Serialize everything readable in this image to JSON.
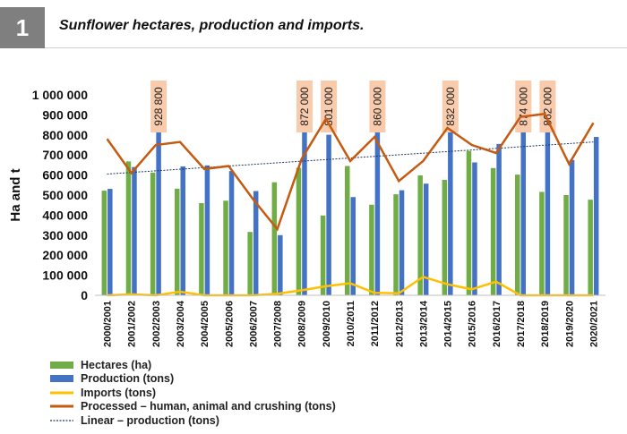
{
  "header": {
    "figure_number": "1",
    "title": "Sunflower hectares, production and imports."
  },
  "chart_data": {
    "type": "bar",
    "ylabel": "Ha and t",
    "ylim": [
      0,
      1000000
    ],
    "yticks": [
      "0",
      "100 000",
      "200 000",
      "300 000",
      "400 000",
      "500 000",
      "600 000",
      "700 000",
      "800 000",
      "900 000",
      "1 000 000"
    ],
    "grid": false,
    "categories": [
      "2000/2001",
      "2001/2002",
      "2002/2003",
      "2003/2004",
      "2004/2005",
      "2005/2006",
      "2006/2007",
      "2007/2008",
      "2008/2009",
      "2009/2010",
      "2010/2011",
      "2011/2012",
      "2012/2013",
      "2013/2014",
      "2014/2015",
      "2015/2016",
      "2016/2017",
      "2017/2018",
      "2018/2019",
      "2019/2020",
      "2020/2021"
    ],
    "colors": {
      "hectares": "#70ad47",
      "production": "#4472c4",
      "imports": "#ffc000",
      "processed": "#c55a11",
      "linear": "#1f3864",
      "callout_bg": "#f8cbad"
    },
    "series": [
      {
        "name": "Hectares (ha)",
        "type": "bar",
        "values": [
          522000,
          668000,
          612000,
          532000,
          460000,
          472000,
          316000,
          564000,
          636000,
          398000,
          645000,
          452000,
          504000,
          598000,
          576000,
          720000,
          635000,
          602000,
          516000,
          500000,
          477000
        ]
      },
      {
        "name": "Production (tons)",
        "type": "bar",
        "values": [
          531000,
          640000,
          928800,
          643000,
          648000,
          620000,
          520000,
          300000,
          872000,
          801000,
          490000,
          860000,
          524000,
          557000,
          832000,
          663000,
          755000,
          874000,
          862000,
          675000,
          790000
        ]
      },
      {
        "name": "Imports (tons)",
        "type": "line",
        "values": [
          0,
          5000,
          0,
          18000,
          0,
          0,
          0,
          8000,
          25000,
          45000,
          60000,
          12000,
          10000,
          92000,
          55000,
          30000,
          68000,
          0,
          0,
          0,
          0
        ]
      },
      {
        "name": "Processed – human, animal and crushing (tons)",
        "type": "line",
        "values": [
          780000,
          610000,
          750000,
          765000,
          630000,
          645000,
          480000,
          330000,
          680000,
          880000,
          670000,
          790000,
          570000,
          670000,
          835000,
          750000,
          710000,
          890000,
          905000,
          655000,
          860000
        ]
      },
      {
        "name": "Linear – production (tons)",
        "type": "trendline",
        "start": 605000,
        "end": 765000
      }
    ],
    "annotations": [
      {
        "category": "2002/2003",
        "label": "928 800"
      },
      {
        "category": "2008/2009",
        "label": "872 000"
      },
      {
        "category": "2009/2010",
        "label": "801 000"
      },
      {
        "category": "2011/2012",
        "label": "860 000"
      },
      {
        "category": "2014/2015",
        "label": "832 000"
      },
      {
        "category": "2017/2018",
        "label": "874 000"
      },
      {
        "category": "2018/2019",
        "label": "862 000"
      }
    ]
  }
}
